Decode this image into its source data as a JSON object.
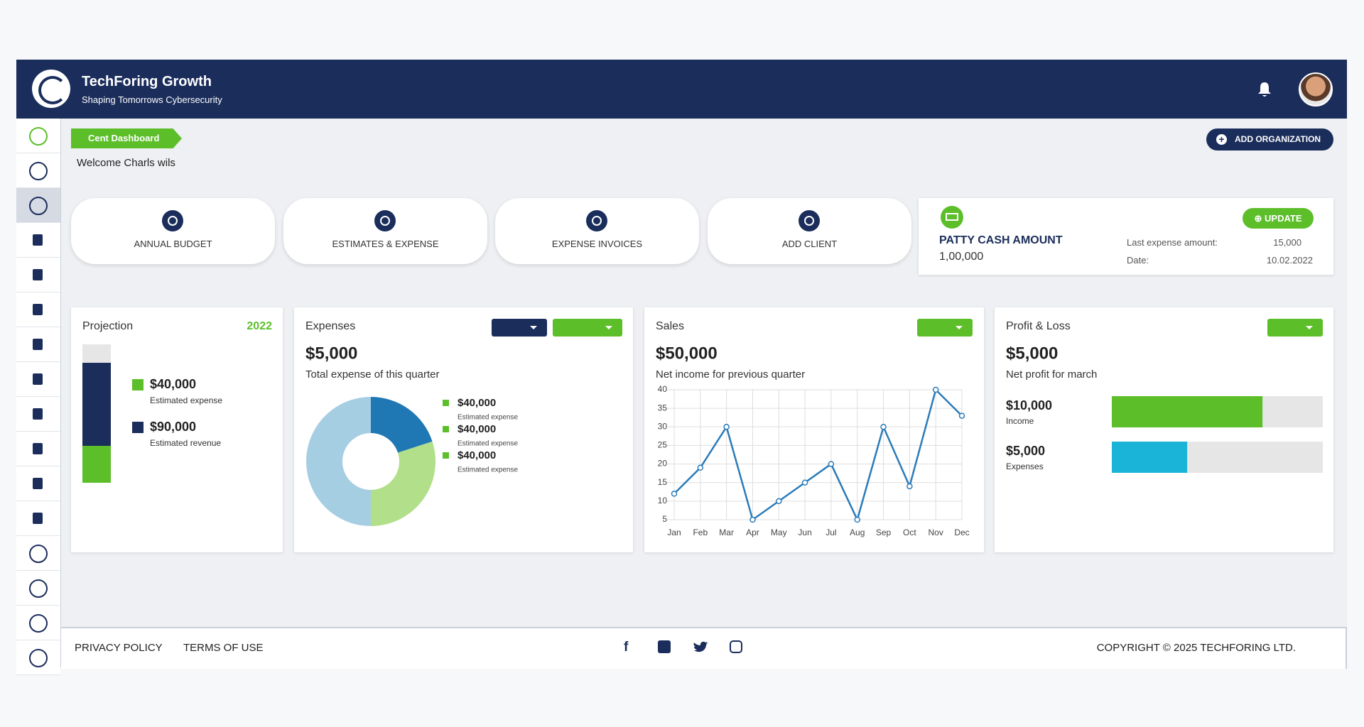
{
  "header": {
    "title": "TechForing Growth",
    "subtitle": "Shaping Tomorrows Cybersecurity"
  },
  "breadcrumb": "Cent Dashboard",
  "welcome": "Welcome Charls wils",
  "add_organization": "ADD ORGANIZATION",
  "tiles": [
    "ANNUAL BUDGET",
    "ESTIMATES & EXPENSE",
    "EXPENSE INVOICES",
    "ADD CLIENT"
  ],
  "patty_cash": {
    "title": "PATTY CASH AMOUNT",
    "amount": "1,00,000",
    "update": "UPDATE",
    "last_expense_label": "Last expense amount:",
    "last_expense": "15,000",
    "date_label": "Date:",
    "date": "10.02.2022"
  },
  "chart_data": [
    {
      "type": "stacked-bar",
      "title": "Projection",
      "year": "2022",
      "ylim": [
        0,
        150000
      ],
      "series": [
        {
          "name": "Estimated expense",
          "color": "#5cbf2a",
          "values": [
            40000
          ],
          "value_labels": [
            "$40,000"
          ]
        },
        {
          "name": "Estimated revenue",
          "color": "#1b2d5b",
          "values": [
            90000
          ],
          "value_labels": [
            "$90,000"
          ]
        }
      ]
    },
    {
      "type": "donut",
      "title": "Expenses",
      "headline": "$5,000",
      "subtitle": "Total expense of this quarter",
      "values": [
        20,
        30,
        50
      ],
      "colors": [
        "#1f78b4",
        "#b2df8a",
        "#a6cee3"
      ],
      "legend_color": "#5cbf2a",
      "legend": [
        {
          "value": "$40,000",
          "label": "Estimated expense"
        },
        {
          "value": "$40,000",
          "label": "Estimated expense"
        },
        {
          "value": "$40,000",
          "label": "Estimated expense"
        }
      ]
    },
    {
      "type": "line",
      "title": "Sales",
      "headline": "$50,000",
      "subtitle": "Net income for previous quarter",
      "categories": [
        "Jan",
        "Feb",
        "Mar",
        "Apr",
        "May",
        "Jun",
        "Jul",
        "Aug",
        "Sep",
        "Oct",
        "Nov",
        "Dec"
      ],
      "values": [
        12,
        19,
        30,
        5,
        10,
        15,
        20,
        5,
        30,
        14,
        40,
        33
      ],
      "color": "#2b7bb9",
      "ylim": [
        5,
        40
      ],
      "yticks": [
        5,
        10,
        15,
        20,
        25,
        30,
        35,
        40
      ],
      "grid": true
    },
    {
      "type": "hbar",
      "title": "Profit & Loss",
      "headline": "$5,000",
      "subtitle": "Net profit for march",
      "categories": [
        "Income",
        "Expenses"
      ],
      "values": [
        10000,
        5000
      ],
      "value_labels": [
        "$10,000",
        "$5,000"
      ],
      "colors": [
        "#5cbf2a",
        "#1ab4d8"
      ],
      "xlim": [
        0,
        14000
      ]
    }
  ],
  "footer": {
    "links": [
      "PRIVACY POLICY",
      "TERMS OF USE"
    ],
    "copyright": "COPYRIGHT © 2025 TECHFORING LTD."
  }
}
